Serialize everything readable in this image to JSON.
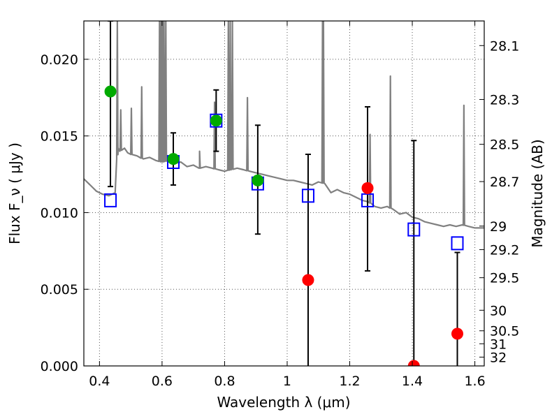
{
  "chart_data": {
    "type": "scatter",
    "xlabel": "Wavelength  λ (μm)",
    "ylabel": "Flux  F_ν  ( μJy )",
    "y2label": "Magnitude (AB)",
    "xlim": [
      0.35,
      1.63
    ],
    "ylim": [
      0.0,
      0.0225
    ],
    "grid": true,
    "x_ticks": [
      0.4,
      0.6,
      0.8,
      1.0,
      1.2,
      1.4,
      1.6
    ],
    "x_tick_labels": [
      "0.4",
      "0.6",
      "0.8",
      "1",
      "1.2",
      "1.4",
      "1.6"
    ],
    "y_ticks": [
      0.0,
      0.005,
      0.01,
      0.015,
      0.02
    ],
    "y_tick_labels": [
      "0.000",
      "0.005",
      "0.010",
      "0.015",
      "0.020"
    ],
    "mag_ticks": [
      28.1,
      28.3,
      28.5,
      28.7,
      29,
      29.2,
      29.5,
      30,
      30.5,
      31,
      32
    ],
    "mag_tick_labels": [
      "28.1",
      "28.3",
      "28.5",
      "28.7",
      "29",
      "29.2",
      "29.5",
      "30",
      "30.5",
      "31",
      "32"
    ],
    "colors": {
      "model": "#808080",
      "model_photometry": "#0000ff",
      "detection": "#00aa00",
      "upper": "#ff0000",
      "errorbar": "#000000",
      "grid": "#555555"
    },
    "series": [
      {
        "marker": "square-open",
        "color": "#0000ff",
        "x": [
          0.435,
          0.636,
          0.773,
          0.906,
          1.067,
          1.257,
          1.405,
          1.544
        ],
        "y": [
          0.0108,
          0.0133,
          0.016,
          0.0119,
          0.0111,
          0.0108,
          0.0089,
          0.008
        ]
      },
      {
        "marker": "circle",
        "color": "#00aa00",
        "x": [
          0.435,
          0.636,
          0.773,
          0.906
        ],
        "y": [
          0.0179,
          0.0135,
          0.016,
          0.0121
        ],
        "yerr_low": [
          0.0062,
          0.0017,
          0.002,
          0.0035
        ],
        "yerr_high": [
          0.0046,
          0.0017,
          0.002,
          0.0036
        ]
      },
      {
        "marker": "circle",
        "color": "#ff0000",
        "x": [
          1.067,
          1.257,
          1.405,
          1.544
        ],
        "y": [
          0.0056,
          0.0116,
          0.0,
          0.0021
        ],
        "errorbar_x": [
          1.067,
          1.257,
          1.405,
          1.544
        ],
        "errorbar_low": [
          0.0,
          0.0062,
          0.0,
          0.0
        ],
        "errorbar_high": [
          0.0138,
          0.0169,
          0.0147,
          0.0074
        ]
      }
    ],
    "model_spectrum": {
      "x": [
        0.35,
        0.37,
        0.39,
        0.41,
        0.43,
        0.44,
        0.45,
        0.455,
        0.46,
        0.465,
        0.47,
        0.48,
        0.49,
        0.5,
        0.52,
        0.54,
        0.56,
        0.58,
        0.6,
        0.62,
        0.64,
        0.66,
        0.68,
        0.7,
        0.72,
        0.74,
        0.76,
        0.78,
        0.8,
        0.82,
        0.84,
        0.86,
        0.88,
        0.9,
        0.92,
        0.94,
        0.96,
        0.98,
        1.0,
        1.02,
        1.04,
        1.06,
        1.08,
        1.1,
        1.12,
        1.14,
        1.16,
        1.18,
        1.2,
        1.22,
        1.24,
        1.26,
        1.28,
        1.3,
        1.32,
        1.34,
        1.36,
        1.38,
        1.4,
        1.42,
        1.44,
        1.46,
        1.48,
        1.5,
        1.52,
        1.54,
        1.56,
        1.58,
        1.6,
        1.63
      ],
      "y": [
        0.0122,
        0.0118,
        0.0114,
        0.0112,
        0.0111,
        0.0112,
        0.0113,
        0.0135,
        0.0142,
        0.014,
        0.0141,
        0.0142,
        0.0139,
        0.0138,
        0.0137,
        0.0135,
        0.0136,
        0.0134,
        0.0133,
        0.0134,
        0.0132,
        0.0133,
        0.013,
        0.0131,
        0.0129,
        0.013,
        0.0129,
        0.0128,
        0.0127,
        0.0128,
        0.0129,
        0.0128,
        0.0127,
        0.0126,
        0.0125,
        0.0124,
        0.0123,
        0.0122,
        0.0121,
        0.0121,
        0.012,
        0.0119,
        0.0118,
        0.012,
        0.0119,
        0.0113,
        0.0115,
        0.0113,
        0.0112,
        0.011,
        0.0108,
        0.0107,
        0.0104,
        0.0103,
        0.0104,
        0.0102,
        0.0099,
        0.01,
        0.0097,
        0.0096,
        0.0094,
        0.0093,
        0.0092,
        0.0091,
        0.0092,
        0.0091,
        0.0092,
        0.0091,
        0.009,
        0.009
      ],
      "lines": [
        {
          "x": 0.457,
          "peak": 0.0225
        },
        {
          "x": 0.468,
          "peak": 0.0167
        },
        {
          "x": 0.502,
          "peak": 0.0168
        },
        {
          "x": 0.535,
          "peak": 0.0182
        },
        {
          "x": 0.592,
          "peak": 0.0225
        },
        {
          "x": 0.597,
          "peak": 0.0225
        },
        {
          "x": 0.602,
          "peak": 0.0225
        },
        {
          "x": 0.606,
          "peak": 0.0225
        },
        {
          "x": 0.612,
          "peak": 0.0225
        },
        {
          "x": 0.72,
          "peak": 0.014
        },
        {
          "x": 0.768,
          "peak": 0.0172
        },
        {
          "x": 0.812,
          "peak": 0.0225
        },
        {
          "x": 0.818,
          "peak": 0.0225
        },
        {
          "x": 0.825,
          "peak": 0.0225
        },
        {
          "x": 0.873,
          "peak": 0.0175
        },
        {
          "x": 1.113,
          "peak": 0.0225
        },
        {
          "x": 1.116,
          "peak": 0.0225
        },
        {
          "x": 1.265,
          "peak": 0.0151
        },
        {
          "x": 1.33,
          "peak": 0.0189
        },
        {
          "x": 1.565,
          "peak": 0.017
        }
      ]
    }
  }
}
